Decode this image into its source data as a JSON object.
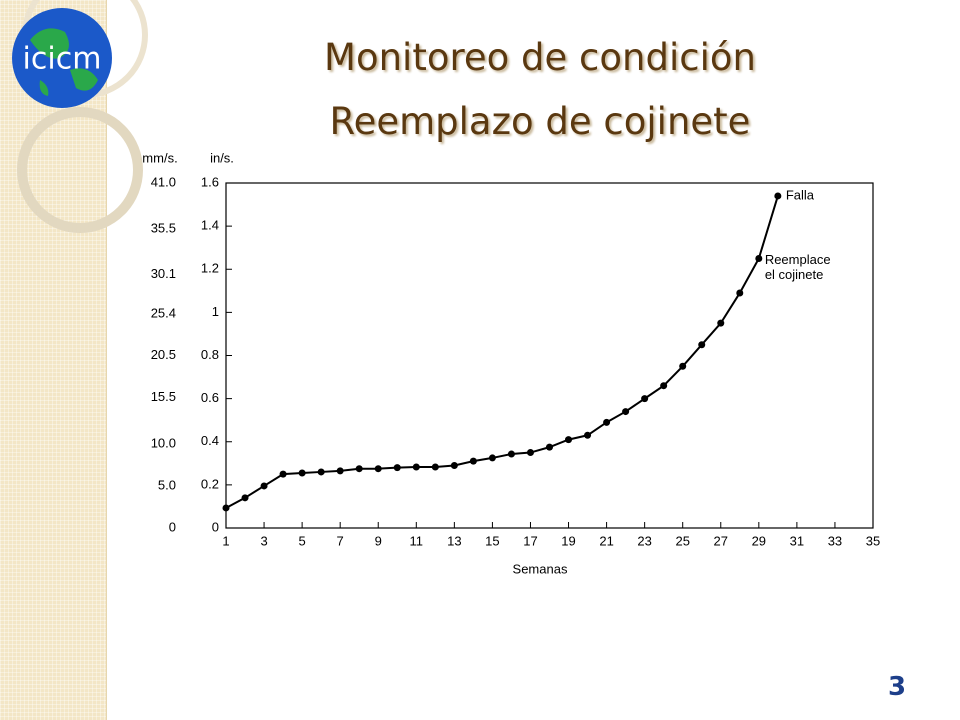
{
  "slide": {
    "title_lines": [
      "Monitoreo de condición",
      "Reemplazo de cojinete"
    ],
    "logo": "icicm",
    "page_number": "3"
  },
  "chart_data": {
    "type": "line",
    "x_label": "Semanas",
    "y_label": "in/s.",
    "y2_label": "mm/s.",
    "x": [
      1,
      2,
      3,
      4,
      5,
      6,
      7,
      8,
      9,
      10,
      11,
      12,
      13,
      14,
      15,
      16,
      17,
      18,
      19,
      20,
      21,
      22,
      23,
      24,
      25,
      26,
      27,
      28,
      29,
      30
    ],
    "series": [
      {
        "color": "#000000",
        "values": [
          0.093,
          0.14,
          0.195,
          0.25,
          0.255,
          0.26,
          0.265,
          0.275,
          0.275,
          0.28,
          0.283,
          0.283,
          0.29,
          0.31,
          0.325,
          0.343,
          0.35,
          0.375,
          0.41,
          0.43,
          0.49,
          0.54,
          0.6,
          0.66,
          0.75,
          0.85,
          0.95,
          1.09,
          1.25,
          1.54
        ]
      }
    ],
    "xlim": [
      1,
      35
    ],
    "xticks": [
      1,
      3,
      5,
      7,
      9,
      11,
      13,
      15,
      17,
      19,
      21,
      23,
      25,
      27,
      29,
      31,
      33,
      35
    ],
    "ylim": [
      0,
      1.6
    ],
    "yticks": [
      0,
      0.2,
      0.4,
      0.6,
      0.8,
      1,
      1.2,
      1.4,
      1.6
    ],
    "y2lim": [
      0,
      41
    ],
    "y2ticks": [
      0,
      {
        "value": 5,
        "label": "5.0"
      },
      {
        "value": 10,
        "label": "10.0"
      },
      15.5,
      20.5,
      25.4,
      30.1,
      35.5,
      {
        "value": 41,
        "label": "41.0"
      }
    ],
    "annotations": [
      "Falla",
      "Reemplace",
      "el cojinete"
    ]
  }
}
